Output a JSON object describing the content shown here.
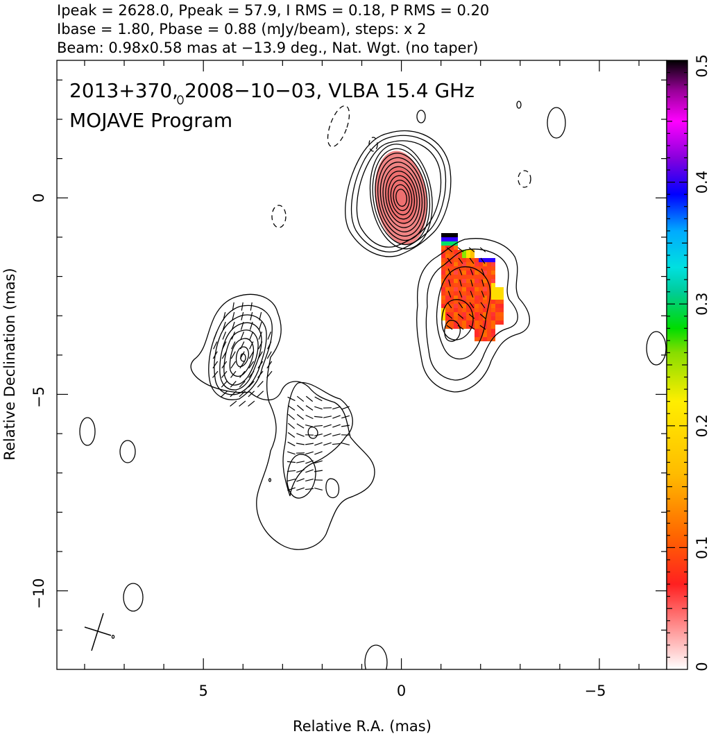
{
  "header": {
    "line1": "Ipeak = 2628.0, Ppeak = 57.9, I RMS = 0.18, P RMS = 0.20",
    "line2": "Ibase = 1.80, Pbase = 0.88 (mJy/beam), steps: x 2",
    "line3": "Beam: 0.98x0.58 mas at −13.9 deg., Nat. Wgt. (no taper)"
  },
  "annotation": {
    "line1": "2013+370, 2008−10−03, VLBA 15.4 GHz",
    "line2": "MOJAVE Program"
  },
  "chart_data": {
    "type": "heatmap",
    "title": "",
    "xlabel": "Relative R.A. (mas)",
    "ylabel": "Relative Declination (mas)",
    "xlim": [
      8.7,
      -6.7
    ],
    "ylim": [
      -12.0,
      3.5
    ],
    "x_ticks": [
      5,
      0,
      -5
    ],
    "x_tick_labels": [
      "5",
      "0",
      "−5"
    ],
    "y_ticks": [
      0,
      -5,
      -10
    ],
    "y_tick_labels": [
      "0",
      "−5",
      "−10"
    ],
    "colorbar": {
      "min": 0,
      "max": 0.5,
      "ticks": [
        0,
        0.1,
        0.2,
        0.3,
        0.4,
        0.5
      ],
      "tick_labels": [
        "0",
        "0.1",
        "0.2",
        "0.3",
        "0.4",
        "0.5"
      ],
      "stops": [
        "#ffffff",
        "#ff0000",
        "#ff9900",
        "#ffee00",
        "#00dd00",
        "#00e0e0",
        "#0000ff",
        "#ff00ff",
        "#000000"
      ]
    },
    "beam": {
      "major_mas": 0.98,
      "minor_mas": 0.58,
      "pa_deg": -13.9
    },
    "contour_base_mJy": 1.8,
    "contour_step_factor": 2,
    "core": {
      "x": 0.0,
      "y": 0.0,
      "contour_levels": 11
    },
    "east_component": {
      "x": 4.0,
      "y": -4.0,
      "contour_levels": 7
    },
    "southwest_component": {
      "x": -1.3,
      "y": -3.3,
      "contour_levels": 3
    },
    "fractional_polarization_region": {
      "x_range": [
        -1.0,
        -2.6
      ],
      "y_range": [
        -0.9,
        -3.6
      ],
      "value_range": [
        0.05,
        0.5
      ]
    }
  }
}
